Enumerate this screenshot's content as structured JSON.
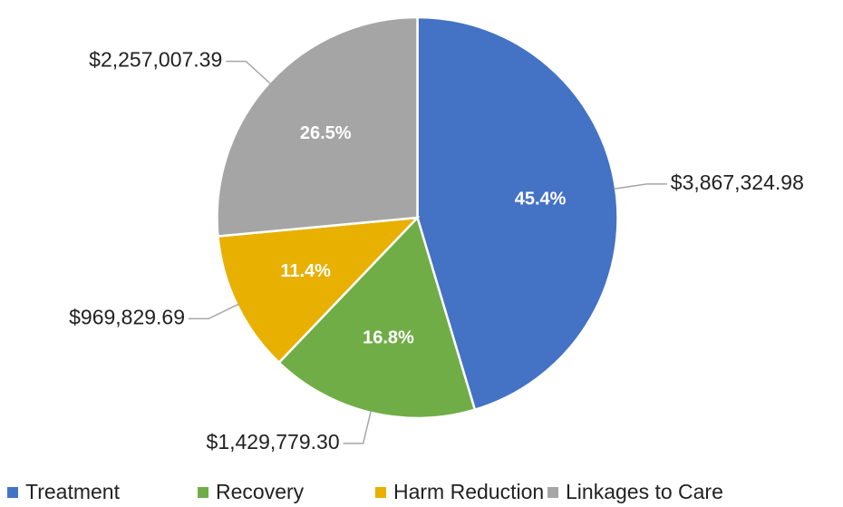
{
  "chart_data": {
    "type": "pie",
    "categories": [
      "Treatment",
      "Recovery",
      "Harm Reduction",
      "Linkages to Care"
    ],
    "values": [
      3867324.98,
      1429779.3,
      969829.69,
      2257007.39
    ],
    "value_labels": [
      "$3,867,324.98",
      "$1,429,779.30",
      "$969,829.69",
      "$2,257,007.39"
    ],
    "percent_labels": [
      "45.4%",
      "16.8%",
      "11.4%",
      "26.5%"
    ],
    "colors": [
      "#4472c4",
      "#70ad47",
      "#e8b000",
      "#a5a5a5"
    ],
    "legend": "bottom"
  }
}
